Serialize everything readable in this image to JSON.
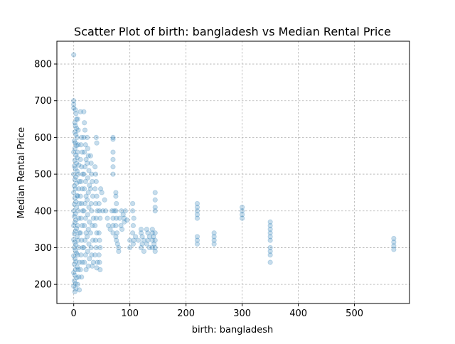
{
  "chart_data": {
    "type": "scatter",
    "title": "Scatter Plot of birth: bangladesh vs Median Rental Price",
    "xlabel": "birth: bangladesh",
    "ylabel": "Median Rental Price",
    "xlim": [
      -30,
      598
    ],
    "ylim": [
      148,
      862
    ],
    "xticks": [
      0,
      100,
      200,
      300,
      400,
      500
    ],
    "yticks": [
      200,
      300,
      400,
      500,
      600,
      700,
      800
    ],
    "grid": true,
    "marker_color": "#1f77b4",
    "marker_alpha": 0.25,
    "series": [
      {
        "points": [
          [
            0,
            825
          ],
          [
            0,
            700
          ],
          [
            0,
            690
          ],
          [
            0,
            680
          ],
          [
            3,
            675
          ],
          [
            4,
            665
          ],
          [
            5,
            650
          ],
          [
            2,
            640
          ],
          [
            3,
            632
          ],
          [
            5,
            625
          ],
          [
            2,
            615
          ],
          [
            4,
            608
          ],
          [
            6,
            600
          ],
          [
            1,
            590
          ],
          [
            3,
            585
          ],
          [
            5,
            578
          ],
          [
            2,
            570
          ],
          [
            0,
            560
          ],
          [
            4,
            552
          ],
          [
            6,
            545
          ],
          [
            2,
            538
          ],
          [
            5,
            530
          ],
          [
            1,
            522
          ],
          [
            3,
            515
          ],
          [
            6,
            508
          ],
          [
            0,
            500
          ],
          [
            4,
            492
          ],
          [
            2,
            485
          ],
          [
            5,
            475
          ],
          [
            1,
            468
          ],
          [
            3,
            460
          ],
          [
            0,
            450
          ],
          [
            6,
            442
          ],
          [
            2,
            435
          ],
          [
            4,
            425
          ],
          [
            1,
            418
          ],
          [
            5,
            410
          ],
          [
            0,
            400
          ],
          [
            3,
            392
          ],
          [
            1,
            385
          ],
          [
            4,
            375
          ],
          [
            2,
            368
          ],
          [
            0,
            360
          ],
          [
            5,
            352
          ],
          [
            3,
            345
          ],
          [
            1,
            338
          ],
          [
            6,
            330
          ],
          [
            0,
            322
          ],
          [
            2,
            315
          ],
          [
            4,
            308
          ],
          [
            1,
            300
          ],
          [
            3,
            292
          ],
          [
            5,
            285
          ],
          [
            0,
            278
          ],
          [
            2,
            270
          ],
          [
            4,
            262
          ],
          [
            1,
            255
          ],
          [
            6,
            248
          ],
          [
            3,
            240
          ],
          [
            0,
            232
          ],
          [
            2,
            225
          ],
          [
            5,
            218
          ],
          [
            1,
            210
          ],
          [
            3,
            202
          ],
          [
            0,
            195
          ],
          [
            4,
            188
          ],
          [
            2,
            180
          ],
          [
            7,
            650
          ],
          [
            8,
            620
          ],
          [
            8,
            580
          ],
          [
            7,
            560
          ],
          [
            9,
            525
          ],
          [
            8,
            500
          ],
          [
            10,
            480
          ],
          [
            9,
            460
          ],
          [
            7,
            440
          ],
          [
            10,
            420
          ],
          [
            8,
            400
          ],
          [
            9,
            380
          ],
          [
            7,
            360
          ],
          [
            10,
            340
          ],
          [
            8,
            320
          ],
          [
            9,
            300
          ],
          [
            7,
            280
          ],
          [
            10,
            260
          ],
          [
            8,
            240
          ],
          [
            9,
            220
          ],
          [
            7,
            200
          ],
          [
            10,
            185
          ],
          [
            12,
            670
          ],
          [
            14,
            600
          ],
          [
            13,
            580
          ],
          [
            15,
            560
          ],
          [
            12,
            540
          ],
          [
            14,
            520
          ],
          [
            16,
            500
          ],
          [
            13,
            480
          ],
          [
            15,
            460
          ],
          [
            12,
            440
          ],
          [
            14,
            420
          ],
          [
            16,
            400
          ],
          [
            13,
            380
          ],
          [
            15,
            360
          ],
          [
            12,
            340
          ],
          [
            14,
            320
          ],
          [
            16,
            300
          ],
          [
            13,
            280
          ],
          [
            15,
            260
          ],
          [
            12,
            240
          ],
          [
            14,
            220
          ],
          [
            18,
            670
          ],
          [
            19,
            640
          ],
          [
            20,
            620
          ],
          [
            18,
            600
          ],
          [
            21,
            580
          ],
          [
            19,
            560
          ],
          [
            22,
            540
          ],
          [
            20,
            520
          ],
          [
            18,
            500
          ],
          [
            21,
            480
          ],
          [
            19,
            460
          ],
          [
            22,
            440
          ],
          [
            20,
            420
          ],
          [
            18,
            400
          ],
          [
            21,
            380
          ],
          [
            19,
            360
          ],
          [
            22,
            340
          ],
          [
            20,
            320
          ],
          [
            18,
            300
          ],
          [
            21,
            280
          ],
          [
            19,
            260
          ],
          [
            22,
            240
          ],
          [
            24,
            600
          ],
          [
            25,
            570
          ],
          [
            26,
            550
          ],
          [
            24,
            530
          ],
          [
            27,
            510
          ],
          [
            25,
            490
          ],
          [
            28,
            470
          ],
          [
            26,
            450
          ],
          [
            24,
            430
          ],
          [
            27,
            410
          ],
          [
            25,
            390
          ],
          [
            28,
            370
          ],
          [
            26,
            350
          ],
          [
            24,
            330
          ],
          [
            27,
            310
          ],
          [
            25,
            290
          ],
          [
            28,
            270
          ],
          [
            26,
            250
          ],
          [
            30,
            550
          ],
          [
            31,
            530
          ],
          [
            32,
            500
          ],
          [
            33,
            480
          ],
          [
            30,
            460
          ],
          [
            34,
            440
          ],
          [
            31,
            420
          ],
          [
            32,
            400
          ],
          [
            35,
            380
          ],
          [
            33,
            360
          ],
          [
            30,
            340
          ],
          [
            34,
            320
          ],
          [
            31,
            300
          ],
          [
            32,
            280
          ],
          [
            35,
            260
          ],
          [
            33,
            250
          ],
          [
            38,
            520
          ],
          [
            39,
            500
          ],
          [
            40,
            480
          ],
          [
            38,
            460
          ],
          [
            41,
            440
          ],
          [
            39,
            420
          ],
          [
            42,
            400
          ],
          [
            40,
            380
          ],
          [
            38,
            360
          ],
          [
            41,
            340
          ],
          [
            39,
            320
          ],
          [
            40,
            300
          ],
          [
            38,
            280
          ],
          [
            42,
            260
          ],
          [
            41,
            245
          ],
          [
            40,
            600
          ],
          [
            41,
            585
          ],
          [
            45,
            420
          ],
          [
            46,
            400
          ],
          [
            47,
            380
          ],
          [
            45,
            340
          ],
          [
            46,
            320
          ],
          [
            47,
            300
          ],
          [
            45,
            280
          ],
          [
            46,
            260
          ],
          [
            47,
            240
          ],
          [
            48,
            460
          ],
          [
            50,
            450
          ],
          [
            52,
            400
          ],
          [
            55,
            430
          ],
          [
            57,
            400
          ],
          [
            60,
            380
          ],
          [
            62,
            360
          ],
          [
            65,
            350
          ],
          [
            68,
            400
          ],
          [
            70,
            600
          ],
          [
            70,
            595
          ],
          [
            70,
            560
          ],
          [
            70,
            540
          ],
          [
            70,
            520
          ],
          [
            70,
            500
          ],
          [
            70,
            380
          ],
          [
            70,
            360
          ],
          [
            70,
            340
          ],
          [
            72,
            400
          ],
          [
            75,
            450
          ],
          [
            75,
            440
          ],
          [
            76,
            420
          ],
          [
            75,
            400
          ],
          [
            76,
            380
          ],
          [
            75,
            360
          ],
          [
            77,
            340
          ],
          [
            75,
            330
          ],
          [
            76,
            320
          ],
          [
            78,
            310
          ],
          [
            80,
            300
          ],
          [
            80,
            290
          ],
          [
            82,
            380
          ],
          [
            84,
            360
          ],
          [
            85,
            400
          ],
          [
            86,
            350
          ],
          [
            88,
            390
          ],
          [
            90,
            380
          ],
          [
            90,
            370
          ],
          [
            92,
            400
          ],
          [
            95,
            375
          ],
          [
            100,
            320
          ],
          [
            100,
            300
          ],
          [
            105,
            420
          ],
          [
            105,
            400
          ],
          [
            107,
            380
          ],
          [
            106,
            360
          ],
          [
            105,
            340
          ],
          [
            107,
            320
          ],
          [
            106,
            310
          ],
          [
            110,
            330
          ],
          [
            115,
            320
          ],
          [
            120,
            350
          ],
          [
            120,
            340
          ],
          [
            122,
            330
          ],
          [
            125,
            320
          ],
          [
            122,
            310
          ],
          [
            120,
            300
          ],
          [
            125,
            290
          ],
          [
            130,
            350
          ],
          [
            132,
            340
          ],
          [
            135,
            330
          ],
          [
            132,
            320
          ],
          [
            130,
            310
          ],
          [
            135,
            300
          ],
          [
            140,
            350
          ],
          [
            140,
            340
          ],
          [
            142,
            330
          ],
          [
            140,
            320
          ],
          [
            143,
            310
          ],
          [
            140,
            300
          ],
          [
            145,
            450
          ],
          [
            145,
            430
          ],
          [
            145,
            410
          ],
          [
            145,
            400
          ],
          [
            145,
            340
          ],
          [
            145,
            320
          ],
          [
            145,
            300
          ],
          [
            145,
            290
          ],
          [
            220,
            420
          ],
          [
            220,
            410
          ],
          [
            220,
            400
          ],
          [
            220,
            390
          ],
          [
            220,
            380
          ],
          [
            220,
            330
          ],
          [
            220,
            320
          ],
          [
            220,
            310
          ],
          [
            250,
            340
          ],
          [
            250,
            330
          ],
          [
            250,
            320
          ],
          [
            250,
            310
          ],
          [
            300,
            410
          ],
          [
            300,
            400
          ],
          [
            300,
            390
          ],
          [
            300,
            380
          ],
          [
            350,
            300
          ],
          [
            350,
            290
          ],
          [
            350,
            280
          ],
          [
            350,
            260
          ],
          [
            350,
            370
          ],
          [
            350,
            360
          ],
          [
            350,
            350
          ],
          [
            350,
            340
          ],
          [
            350,
            330
          ],
          [
            350,
            320
          ],
          [
            570,
            325
          ],
          [
            570,
            315
          ],
          [
            570,
            305
          ],
          [
            570,
            295
          ]
        ]
      }
    ]
  }
}
